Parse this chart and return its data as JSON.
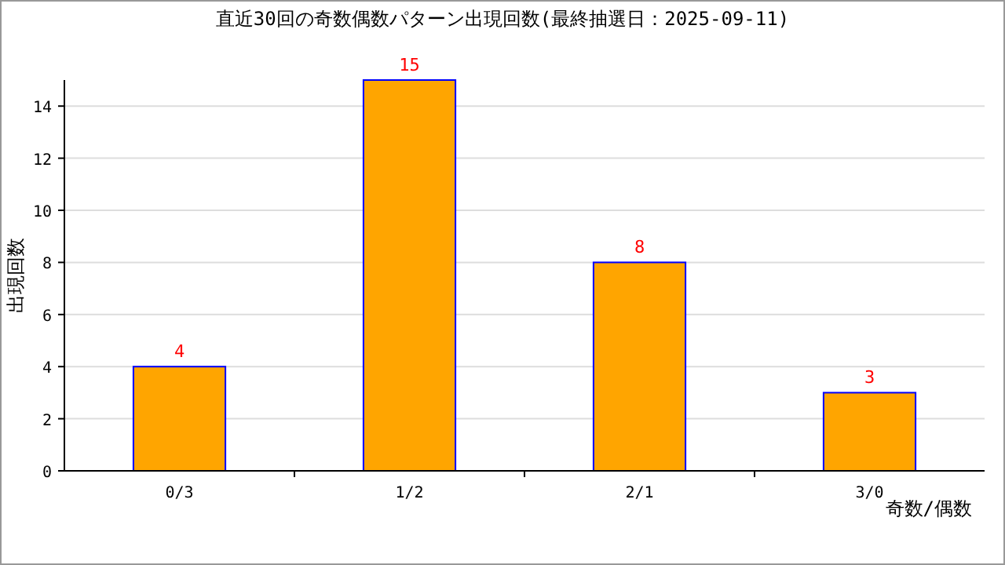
{
  "chart_data": {
    "type": "bar",
    "title": "直近30回の奇数偶数パターン出現回数(最終抽選日：2025-09-11)",
    "xlabel": "奇数/偶数",
    "ylabel": "出現回数",
    "categories": [
      "0/3",
      "1/2",
      "2/1",
      "3/0"
    ],
    "values": [
      4,
      15,
      8,
      3
    ],
    "color": "#ffa500",
    "ylim": [
      0,
      15
    ],
    "yticks": [
      0,
      2,
      4,
      6,
      8,
      10,
      12,
      14
    ],
    "grid": "y",
    "data_labels": true
  }
}
